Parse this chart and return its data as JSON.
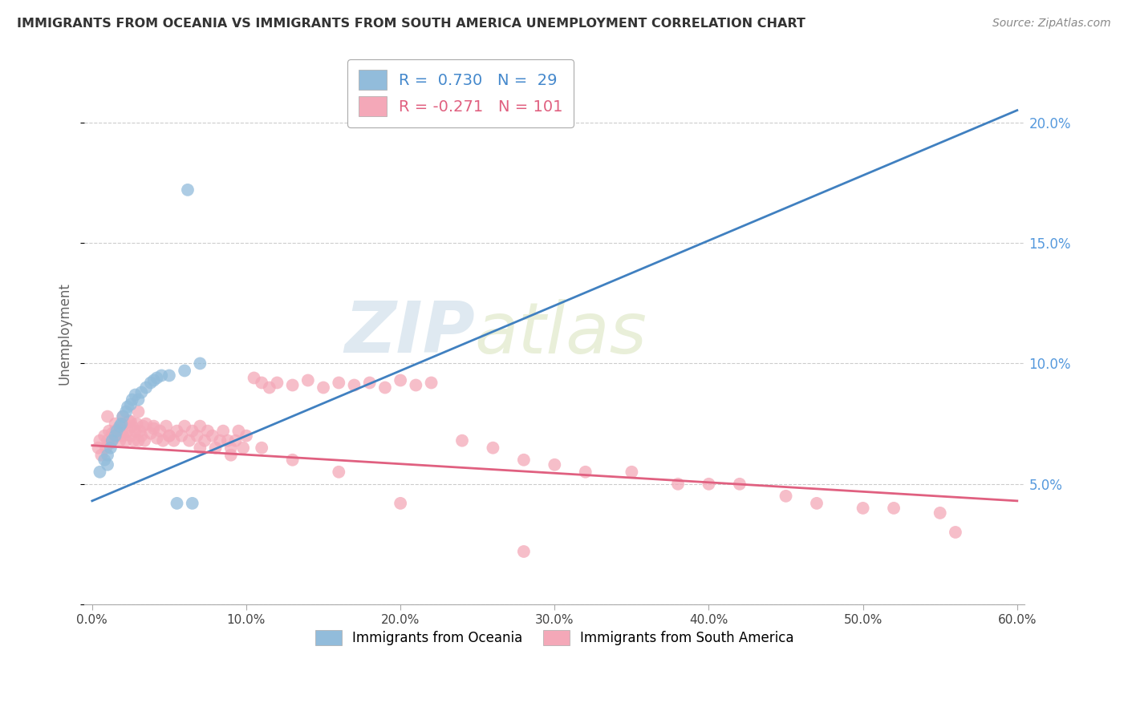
{
  "title": "IMMIGRANTS FROM OCEANIA VS IMMIGRANTS FROM SOUTH AMERICA UNEMPLOYMENT CORRELATION CHART",
  "source": "Source: ZipAtlas.com",
  "ylabel": "Unemployment",
  "xlim": [
    -0.005,
    0.605
  ],
  "ylim": [
    0.0,
    0.225
  ],
  "xticks": [
    0.0,
    0.1,
    0.2,
    0.3,
    0.4,
    0.5,
    0.6
  ],
  "xtick_labels": [
    "0.0%",
    "10.0%",
    "20.0%",
    "30.0%",
    "40.0%",
    "50.0%",
    "60.0%"
  ],
  "yticks": [
    0.0,
    0.05,
    0.1,
    0.15,
    0.2
  ],
  "ytick_labels": [
    "",
    "5.0%",
    "10.0%",
    "15.0%",
    "20.0%"
  ],
  "R_oceania": 0.73,
  "N_oceania": 29,
  "R_south_america": -0.271,
  "N_south_america": 101,
  "watermark_ZIP": "ZIP",
  "watermark_atlas": "atlas",
  "blue_color": "#92bcdb",
  "pink_color": "#f4a8b8",
  "blue_line_color": "#4080c0",
  "pink_line_color": "#e06080",
  "blue_text_color": "#4488cc",
  "pink_text_color": "#e06080",
  "right_axis_color": "#5599dd",
  "oceania_x": [
    0.005,
    0.008,
    0.01,
    0.01,
    0.012,
    0.013,
    0.015,
    0.016,
    0.018,
    0.019,
    0.02,
    0.022,
    0.023,
    0.025,
    0.026,
    0.028,
    0.03,
    0.032,
    0.035,
    0.038,
    0.04,
    0.042,
    0.045,
    0.05,
    0.055,
    0.06,
    0.065,
    0.07,
    0.062
  ],
  "oceania_y": [
    0.055,
    0.06,
    0.062,
    0.058,
    0.065,
    0.068,
    0.07,
    0.072,
    0.074,
    0.075,
    0.078,
    0.08,
    0.082,
    0.083,
    0.085,
    0.087,
    0.085,
    0.088,
    0.09,
    0.092,
    0.093,
    0.094,
    0.095,
    0.095,
    0.042,
    0.097,
    0.042,
    0.1,
    0.172
  ],
  "south_america_x": [
    0.004,
    0.005,
    0.006,
    0.008,
    0.009,
    0.01,
    0.011,
    0.012,
    0.013,
    0.014,
    0.015,
    0.016,
    0.017,
    0.018,
    0.019,
    0.02,
    0.021,
    0.022,
    0.023,
    0.024,
    0.025,
    0.026,
    0.027,
    0.028,
    0.029,
    0.03,
    0.031,
    0.032,
    0.033,
    0.034,
    0.035,
    0.038,
    0.04,
    0.042,
    0.044,
    0.046,
    0.048,
    0.05,
    0.053,
    0.055,
    0.058,
    0.06,
    0.063,
    0.065,
    0.068,
    0.07,
    0.073,
    0.075,
    0.078,
    0.08,
    0.083,
    0.085,
    0.088,
    0.09,
    0.093,
    0.095,
    0.098,
    0.1,
    0.105,
    0.11,
    0.115,
    0.12,
    0.13,
    0.14,
    0.15,
    0.16,
    0.17,
    0.18,
    0.19,
    0.2,
    0.21,
    0.22,
    0.24,
    0.26,
    0.28,
    0.3,
    0.32,
    0.35,
    0.38,
    0.4,
    0.42,
    0.45,
    0.47,
    0.5,
    0.52,
    0.55,
    0.01,
    0.015,
    0.02,
    0.025,
    0.03,
    0.04,
    0.05,
    0.07,
    0.09,
    0.11,
    0.13,
    0.16,
    0.2,
    0.28,
    0.56
  ],
  "south_america_y": [
    0.065,
    0.068,
    0.062,
    0.07,
    0.065,
    0.068,
    0.072,
    0.067,
    0.071,
    0.069,
    0.075,
    0.07,
    0.073,
    0.068,
    0.072,
    0.07,
    0.075,
    0.068,
    0.072,
    0.076,
    0.07,
    0.074,
    0.068,
    0.072,
    0.075,
    0.068,
    0.072,
    0.07,
    0.074,
    0.068,
    0.075,
    0.071,
    0.073,
    0.069,
    0.072,
    0.068,
    0.074,
    0.07,
    0.068,
    0.072,
    0.07,
    0.074,
    0.068,
    0.072,
    0.07,
    0.074,
    0.068,
    0.072,
    0.07,
    0.065,
    0.068,
    0.072,
    0.068,
    0.065,
    0.068,
    0.072,
    0.065,
    0.07,
    0.094,
    0.092,
    0.09,
    0.092,
    0.091,
    0.093,
    0.09,
    0.092,
    0.091,
    0.092,
    0.09,
    0.093,
    0.091,
    0.092,
    0.068,
    0.065,
    0.06,
    0.058,
    0.055,
    0.055,
    0.05,
    0.05,
    0.05,
    0.045,
    0.042,
    0.04,
    0.04,
    0.038,
    0.078,
    0.072,
    0.078,
    0.076,
    0.08,
    0.074,
    0.07,
    0.065,
    0.062,
    0.065,
    0.06,
    0.055,
    0.042,
    0.022,
    0.03
  ],
  "blue_line_x0": 0.0,
  "blue_line_y0": 0.043,
  "blue_line_x1": 0.6,
  "blue_line_y1": 0.205,
  "pink_line_x0": 0.0,
  "pink_line_y0": 0.066,
  "pink_line_x1": 0.6,
  "pink_line_y1": 0.043
}
